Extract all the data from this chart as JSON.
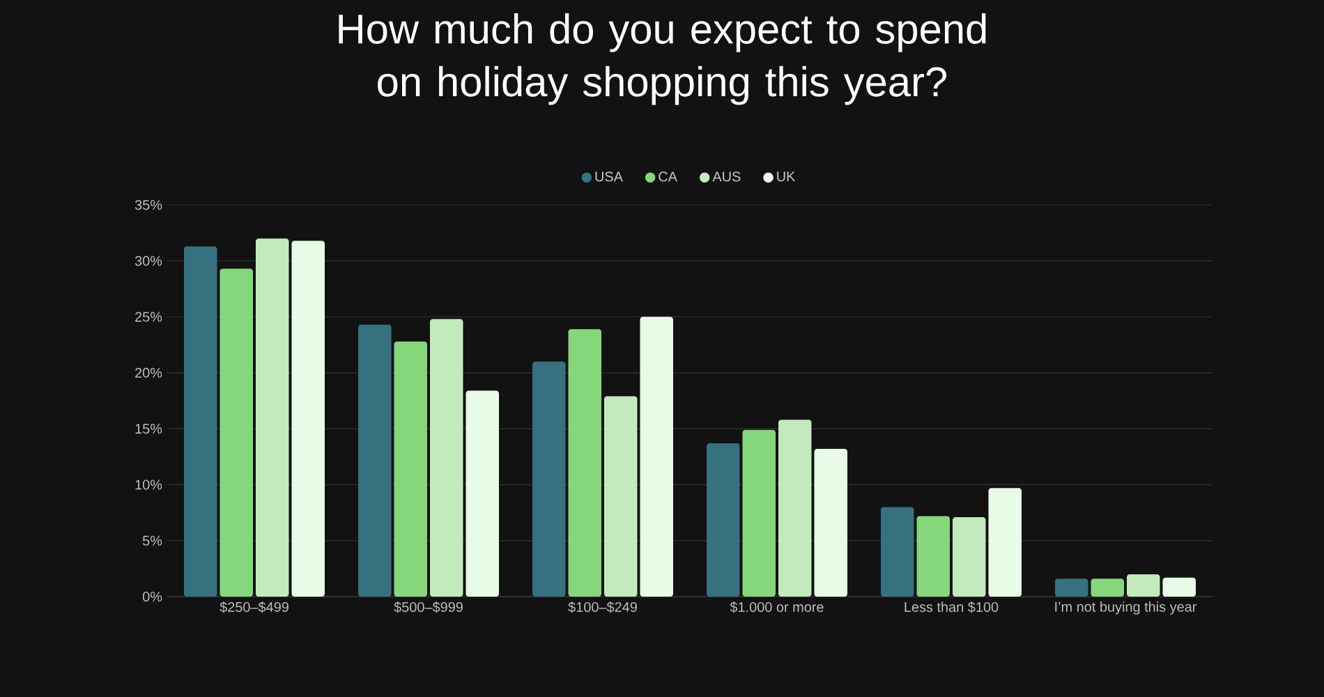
{
  "chart_data": {
    "type": "bar",
    "title": "How much do you expect to spend on holiday shopping this year?",
    "categories": [
      "$250–$499",
      "$500–$999",
      "$100–$249",
      "$1.000 or more",
      "Less than $100",
      "I’m not buying this year"
    ],
    "series": [
      {
        "name": "USA",
        "color": "#36717f",
        "values": [
          31.3,
          24.3,
          21.0,
          13.7,
          8.0,
          1.6
        ]
      },
      {
        "name": "CA",
        "color": "#86d67c",
        "values": [
          29.3,
          22.8,
          23.9,
          14.9,
          7.2,
          1.6
        ]
      },
      {
        "name": "AUS",
        "color": "#c3eabd",
        "values": [
          32.0,
          24.8,
          17.9,
          15.8,
          7.1,
          2.0
        ]
      },
      {
        "name": "UK",
        "color": "#e8fbe6",
        "values": [
          31.8,
          18.4,
          25.0,
          13.2,
          9.7,
          1.7
        ]
      }
    ],
    "ylim": [
      0,
      35
    ],
    "yticks": [
      {
        "value": 0,
        "label": "0%"
      },
      {
        "value": 5,
        "label": "5%"
      },
      {
        "value": 10,
        "label": "10%"
      },
      {
        "value": 15,
        "label": "15%"
      },
      {
        "value": 20,
        "label": "20%"
      },
      {
        "value": 25,
        "label": "25%"
      },
      {
        "value": 30,
        "label": "30%"
      },
      {
        "value": 35,
        "label": "35%"
      }
    ],
    "grid": "y",
    "legend": "top"
  }
}
